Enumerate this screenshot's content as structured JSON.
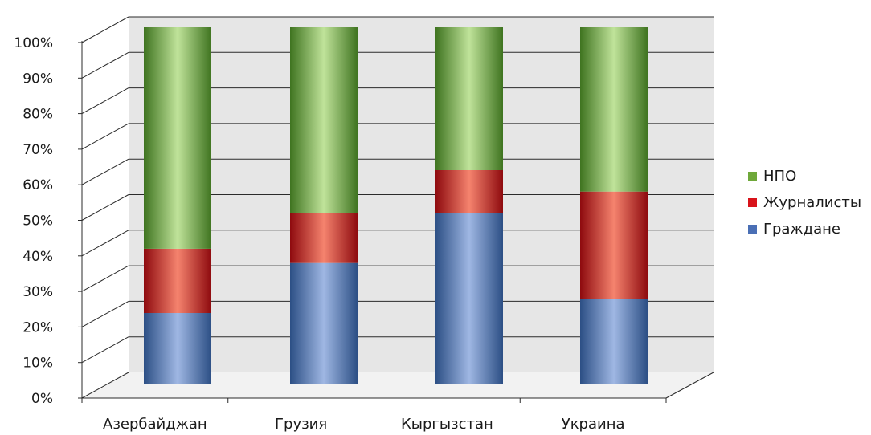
{
  "chart_data": {
    "type": "bar",
    "stacked": true,
    "percent_stacked": true,
    "three_d": true,
    "categories": [
      "Азербайджан",
      "Грузия",
      "Кыргызстан",
      "Украина"
    ],
    "series": [
      {
        "name": "Граждане",
        "values": [
          20,
          34,
          48,
          24
        ],
        "color": "#4a6fb5"
      },
      {
        "name": "Журналисты",
        "values": [
          18,
          14,
          12,
          30
        ],
        "color": "#d8131a"
      },
      {
        "name": "НПО",
        "values": [
          62,
          52,
          40,
          46
        ],
        "color": "#6fa83a"
      }
    ],
    "y_ticks": [
      "0%",
      "10%",
      "20%",
      "30%",
      "40%",
      "50%",
      "60%",
      "70%",
      "80%",
      "90%",
      "100%"
    ],
    "ylim": [
      0,
      100
    ],
    "grid": true,
    "wall_color": "#e6e6e6",
    "legend_position": "right",
    "legend_order": [
      "НПО",
      "Журналисты",
      "Граждане"
    ]
  }
}
